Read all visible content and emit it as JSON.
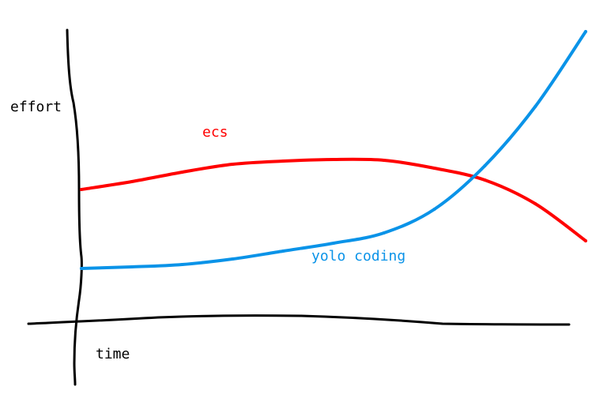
{
  "chart_data": {
    "type": "line",
    "xlabel": "time",
    "ylabel": "effort",
    "x": [
      0,
      1,
      2,
      3,
      4,
      5,
      6,
      7,
      8,
      9,
      10
    ],
    "series": [
      {
        "name": "ecs",
        "color": "#ff0000",
        "values": [
          100,
          110,
          122,
          132,
          136,
          138,
          137,
          127,
          112,
          82,
          35
        ]
      },
      {
        "name": "yolo coding",
        "color": "#0a93e8",
        "values": [
          0,
          2,
          5,
          12,
          22,
          32,
          45,
          75,
          130,
          205,
          300
        ]
      }
    ],
    "axis_color": "#000000",
    "grid": false,
    "legend": "none"
  }
}
